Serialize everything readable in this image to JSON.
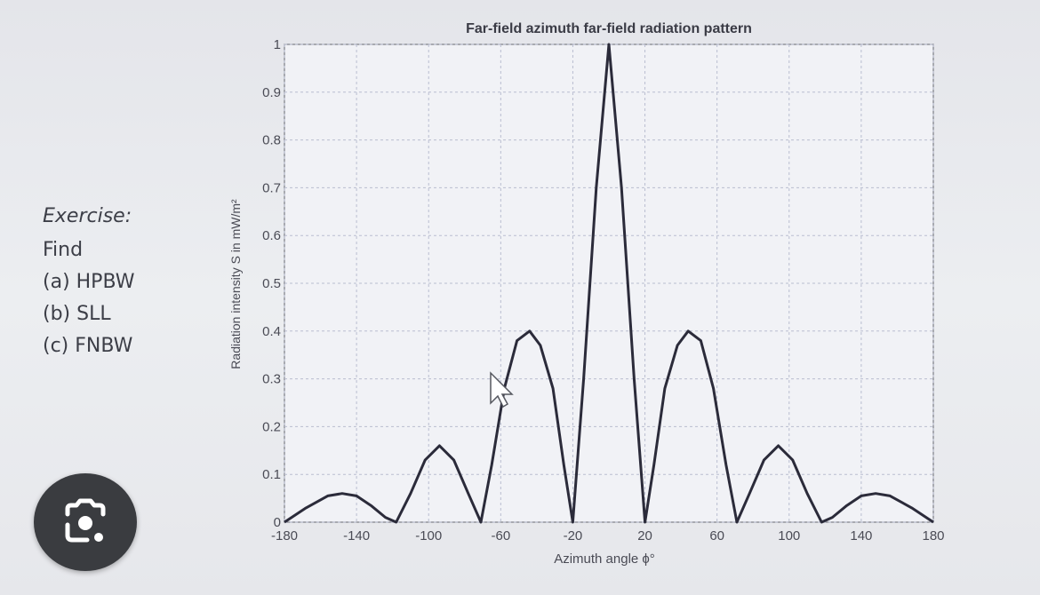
{
  "exercise": {
    "title": "Exercise:",
    "lines": [
      "Find",
      "(a)  HPBW",
      "(b)  SLL",
      "(c)  FNBW"
    ]
  },
  "lens_button": {
    "icon": "camera-lens-icon"
  },
  "chart_data": {
    "type": "line",
    "title": "Far-field azimuth far-field radiation pattern",
    "xlabel": "Azimuth angle ϕ°",
    "ylabel": "Radiation intensity S in mW/m²",
    "xlim": [
      -180,
      180
    ],
    "ylim": [
      0,
      1
    ],
    "xticks": [
      -180,
      -140,
      -100,
      -60,
      -20,
      20,
      60,
      100,
      140,
      180
    ],
    "yticks": [
      0,
      0.1,
      0.2,
      0.3,
      0.4,
      0.5,
      0.6,
      0.7,
      0.8,
      0.9,
      1
    ],
    "grid": true,
    "color": "#2b2b3a",
    "series": [
      {
        "x": [
          -180,
          -168,
          -156,
          -148,
          -140,
          -132,
          -124,
          -118,
          -110,
          -102,
          -94,
          -86,
          -78,
          -71,
          -65,
          -58,
          -51,
          -44,
          -38,
          -31,
          -25,
          -20,
          -14,
          -7,
          0,
          7,
          14,
          20,
          25,
          31,
          38,
          44,
          51,
          58,
          65,
          71,
          78,
          86,
          94,
          102,
          110,
          118,
          124,
          132,
          140,
          148,
          156,
          168,
          180
        ],
        "y": [
          0,
          0.03,
          0.055,
          0.06,
          0.055,
          0.035,
          0.01,
          0,
          0.06,
          0.13,
          0.16,
          0.13,
          0.06,
          0,
          0.12,
          0.28,
          0.38,
          0.4,
          0.37,
          0.28,
          0.12,
          0,
          0.3,
          0.7,
          1.0,
          0.7,
          0.3,
          0,
          0.12,
          0.28,
          0.37,
          0.4,
          0.38,
          0.28,
          0.12,
          0,
          0.06,
          0.13,
          0.16,
          0.13,
          0.06,
          0,
          0.01,
          0.035,
          0.055,
          0.06,
          0.055,
          0.03,
          0
        ]
      }
    ]
  }
}
